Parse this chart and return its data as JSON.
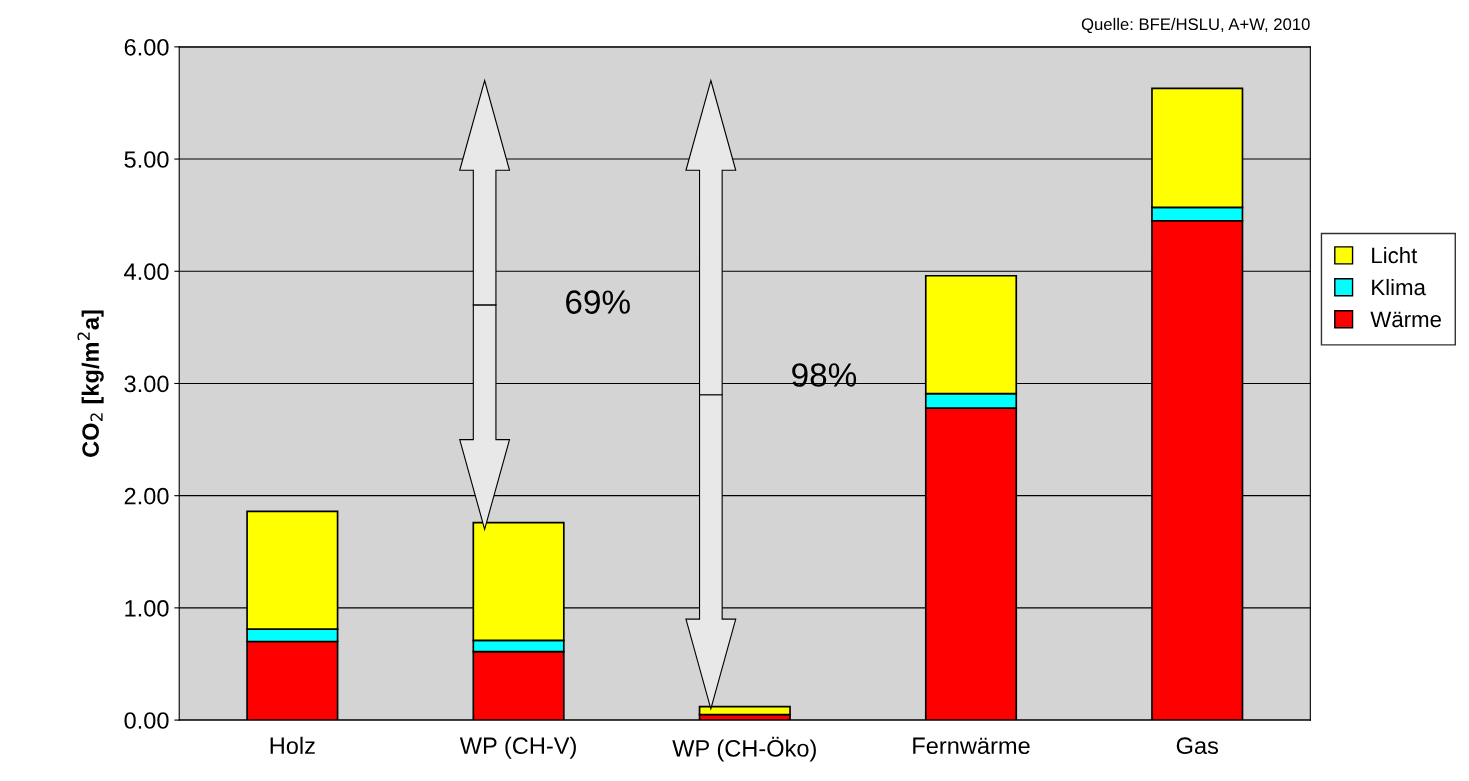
{
  "chart_data": {
    "type": "bar",
    "stacked": true,
    "ylabel": "CO$_{2}$ [kg/m$^{2}$a]",
    "categories": [
      "Holz",
      "WP (CH-V)",
      "WP (CH-Öko)",
      "Fernwärme",
      "Gas"
    ],
    "series": [
      {
        "name": "Wärme",
        "color": "#ff0000",
        "values": [
          0.7,
          0.61,
          0.05,
          2.78,
          4.45
        ]
      },
      {
        "name": "Klima",
        "color": "#00ffff",
        "values": [
          0.11,
          0.1,
          null,
          0.13,
          0.12
        ]
      },
      {
        "name": "Licht",
        "color": "#ffff00",
        "values": [
          1.05,
          1.05,
          0.07,
          1.05,
          1.06
        ]
      }
    ],
    "ylim": [
      0,
      6
    ],
    "yticks": [
      {
        "value": 0,
        "label": "0.00"
      },
      {
        "value": 1,
        "label": "1.00"
      },
      {
        "value": 2,
        "label": "2.00"
      },
      {
        "value": 3,
        "label": "3.00"
      },
      {
        "value": 4,
        "label": "4.00"
      },
      {
        "value": 5,
        "label": "5.00"
      },
      {
        "value": 6,
        "label": "6.00"
      }
    ],
    "grid": "y",
    "legend": "right",
    "annotations": [
      "69%",
      "98%",
      "Quelle: BFE/HSLU, A+W, 2010"
    ]
  }
}
